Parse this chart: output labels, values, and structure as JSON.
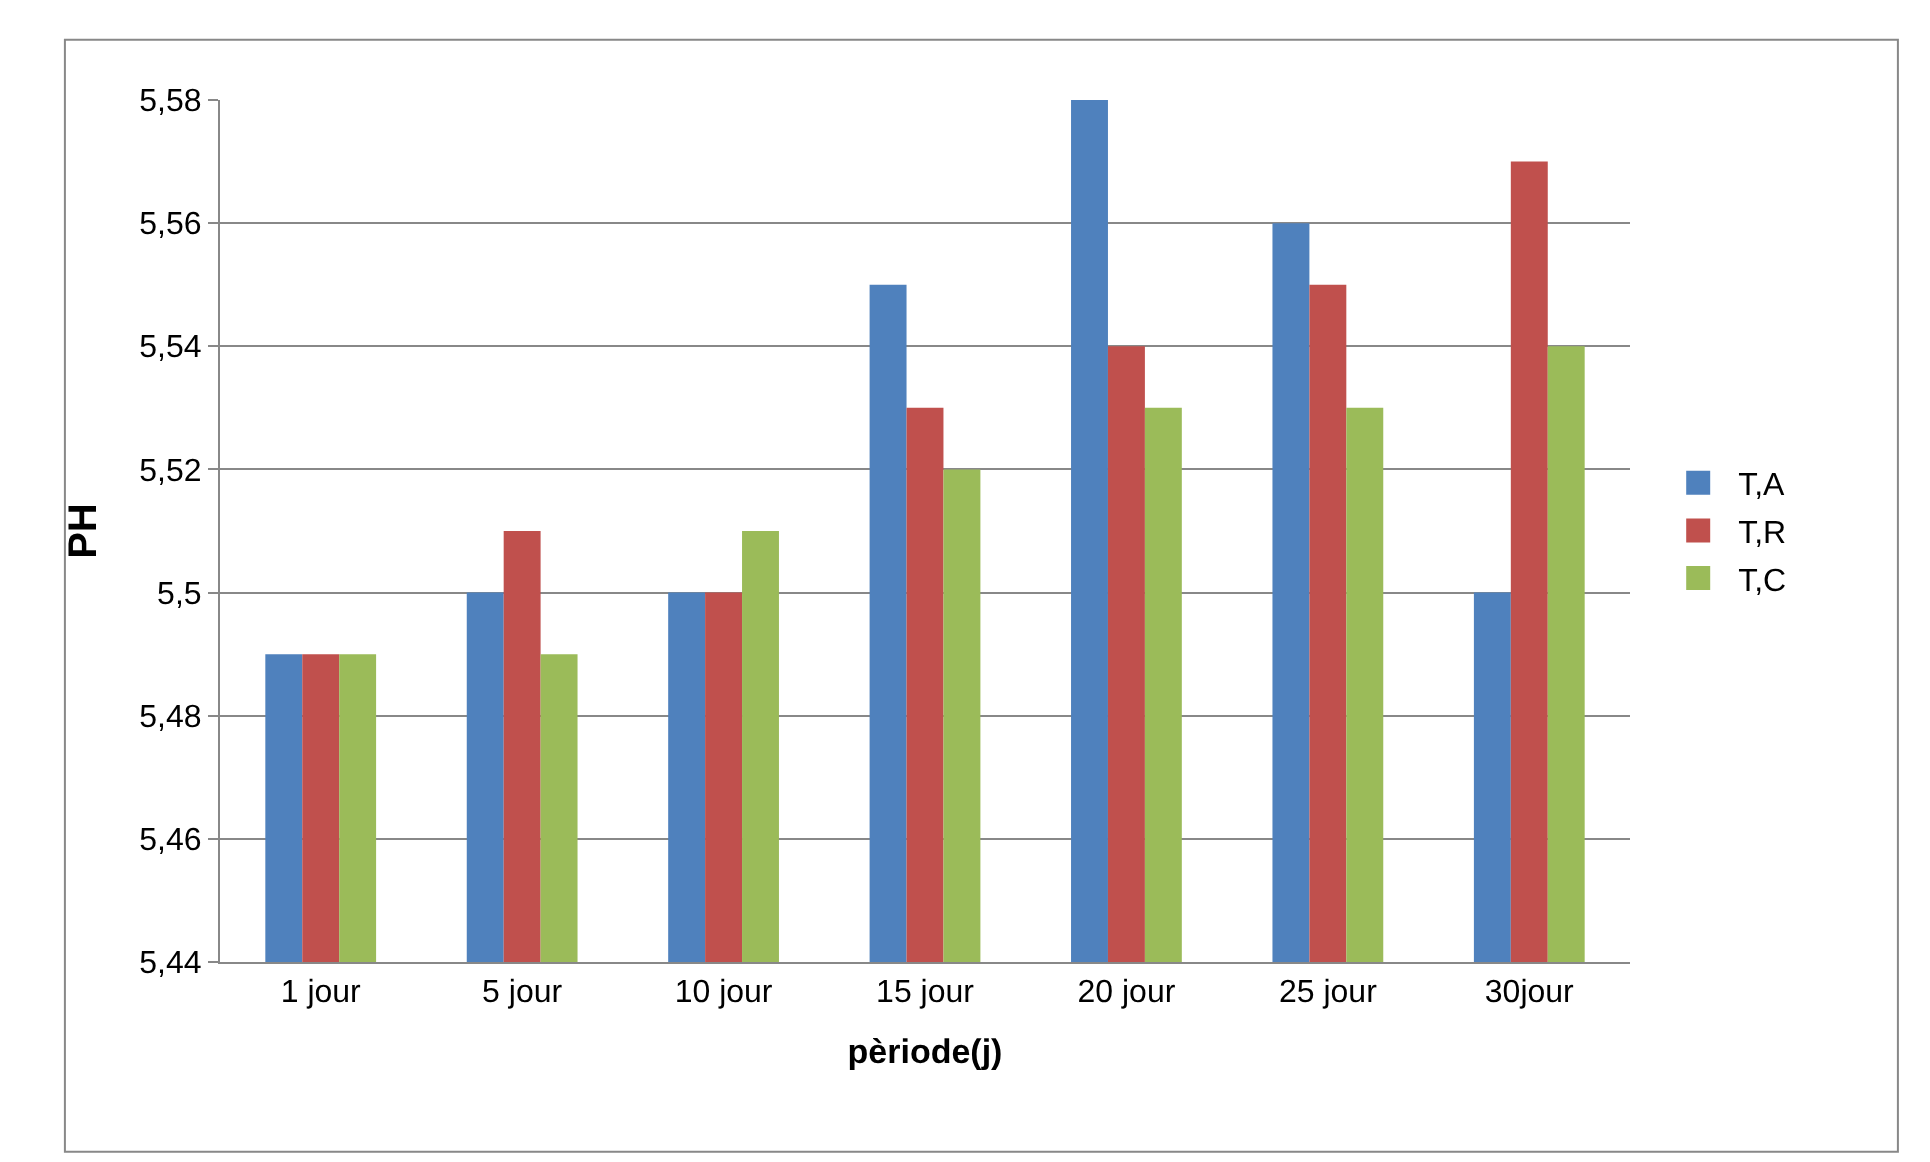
{
  "chart_data": {
    "type": "bar",
    "xlabel": "pèriode(j)",
    "ylabel": "PH",
    "categories": [
      "1 jour",
      "5 jour",
      "10 jour",
      "15 jour",
      "20 jour",
      "25 jour",
      "30jour"
    ],
    "series": [
      {
        "name": "T,A",
        "color": "#4f81bd",
        "values": [
          5.49,
          5.5,
          5.5,
          5.55,
          5.58,
          5.56,
          5.5
        ]
      },
      {
        "name": "T,R",
        "color": "#c0504d",
        "values": [
          5.49,
          5.51,
          5.5,
          5.53,
          5.54,
          5.55,
          5.57
        ]
      },
      {
        "name": "T,C",
        "color": "#9bbb59",
        "values": [
          5.49,
          5.49,
          5.51,
          5.52,
          5.53,
          5.53,
          5.54
        ]
      }
    ],
    "ylim": [
      5.44,
      5.58
    ],
    "yticks": [
      {
        "value": 5.44,
        "label": "5,44"
      },
      {
        "value": 5.46,
        "label": "5,46"
      },
      {
        "value": 5.48,
        "label": "5,48"
      },
      {
        "value": 5.5,
        "label": "5,5"
      },
      {
        "value": 5.52,
        "label": "5,52"
      },
      {
        "value": 5.54,
        "label": "5,54"
      },
      {
        "value": 5.56,
        "label": "5,56"
      },
      {
        "value": 5.58,
        "label": "5,58"
      }
    ],
    "grid": "y",
    "legend": "right"
  }
}
